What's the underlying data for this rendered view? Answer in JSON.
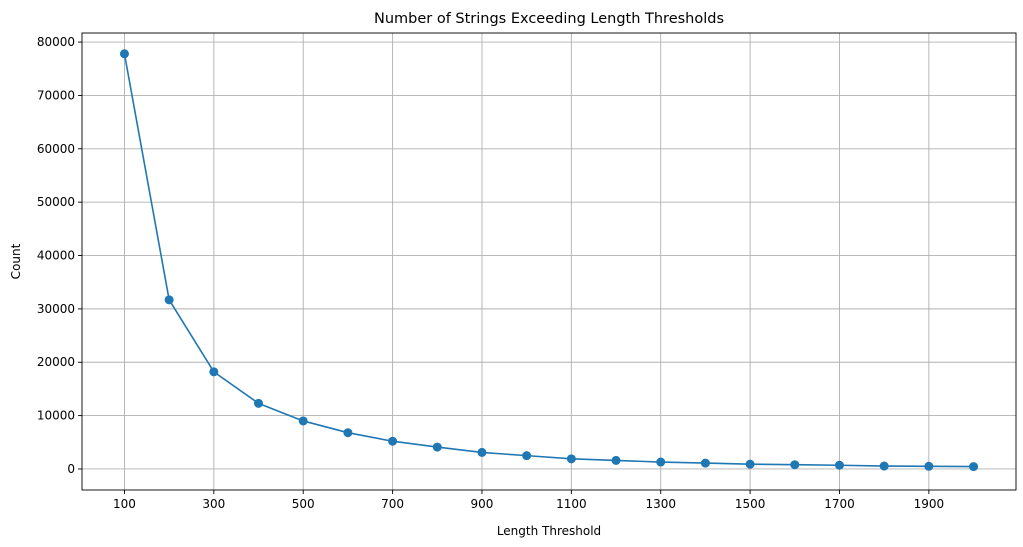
{
  "chart_data": {
    "type": "line",
    "title": "Number of Strings Exceeding Length Thresholds",
    "xlabel": "Length Threshold",
    "ylabel": "Count",
    "x": [
      100,
      200,
      300,
      400,
      500,
      600,
      700,
      800,
      900,
      1000,
      1100,
      1200,
      1300,
      1400,
      1500,
      1600,
      1700,
      1800,
      1900,
      2000
    ],
    "series": [
      {
        "values": [
          77800,
          31700,
          18200,
          12300,
          9000,
          6800,
          5200,
          4100,
          3100,
          2500,
          1900,
          1600,
          1300,
          1100,
          900,
          800,
          700,
          550,
          500,
          450
        ]
      }
    ],
    "xticks": [
      100,
      300,
      500,
      700,
      900,
      1100,
      1300,
      1500,
      1700,
      1900
    ],
    "yticks": [
      0,
      10000,
      20000,
      30000,
      40000,
      50000,
      60000,
      70000,
      80000
    ],
    "xlim": [
      5,
      2095
    ],
    "ylim": [
      -3940,
      81700
    ],
    "grid": true,
    "line_color": "#1f77b4",
    "marker": "circle"
  }
}
